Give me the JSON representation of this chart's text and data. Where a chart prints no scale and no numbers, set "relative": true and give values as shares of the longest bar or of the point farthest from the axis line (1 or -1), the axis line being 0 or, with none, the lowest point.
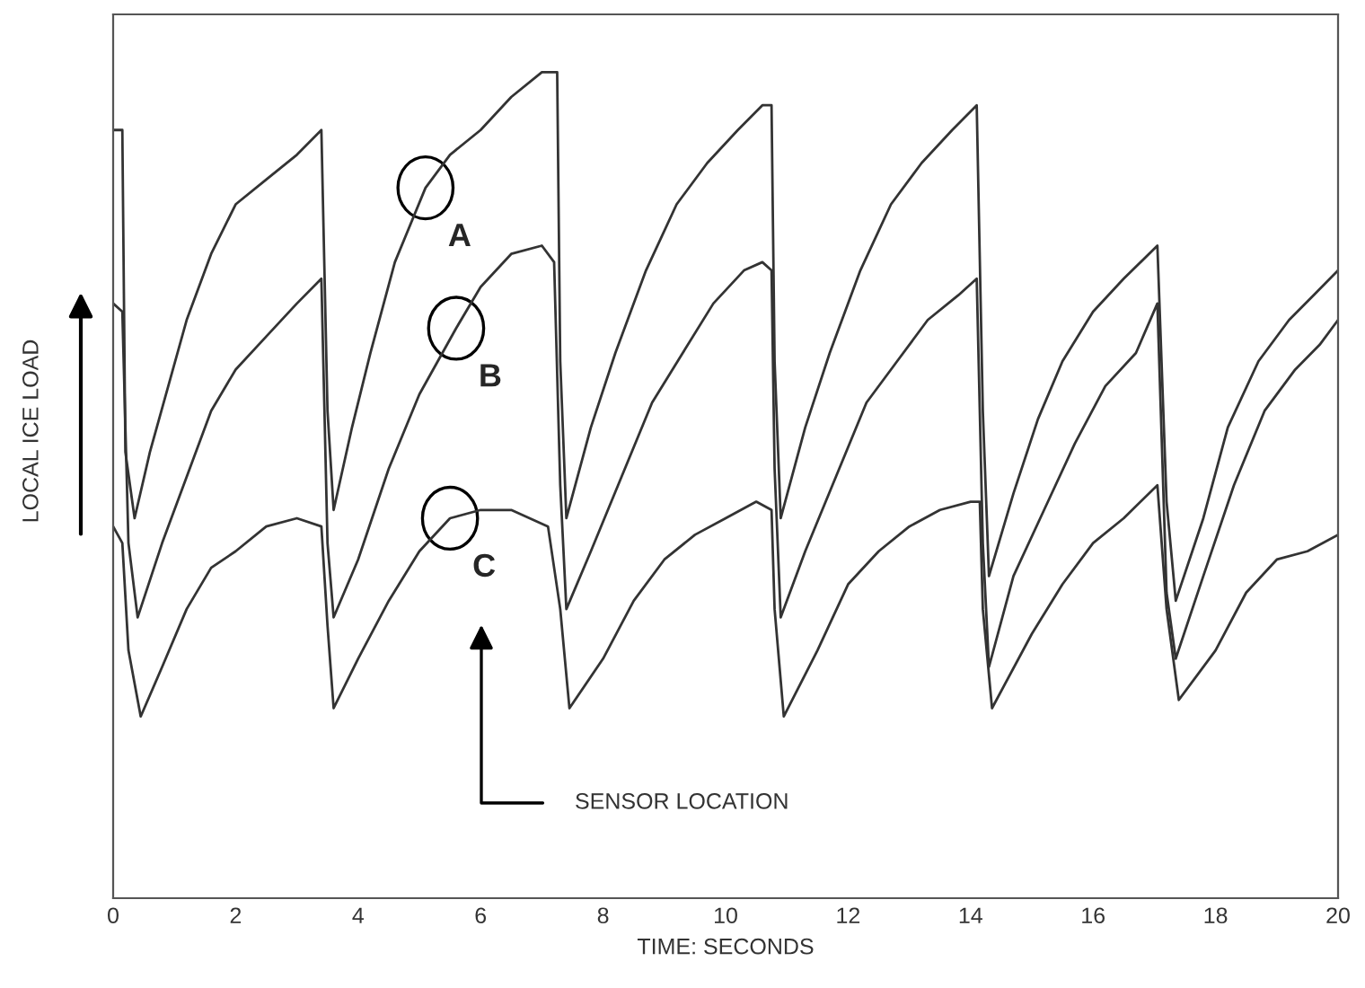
{
  "chart_data": {
    "type": "line",
    "relative": true,
    "xlabel": "TIME: SECONDS",
    "ylabel": "LOCAL ICE LOAD",
    "xlim": [
      0,
      20
    ],
    "xticks": [
      0,
      2,
      4,
      6,
      8,
      10,
      12,
      14,
      16,
      18,
      20
    ],
    "grid": false,
    "legend": false,
    "marker": "none",
    "line_style": "solid",
    "annotations": [
      {
        "text": "A",
        "x": 5.1,
        "y": 0.86
      },
      {
        "text": "B",
        "x": 5.6,
        "y": 0.69
      },
      {
        "text": "C",
        "x": 5.5,
        "y": 0.46
      },
      "SENSOR LOCATION"
    ],
    "series": [
      {
        "color": "#333333",
        "x": [
          0,
          0.15,
          0.2,
          0.35,
          0.6,
          0.9,
          1.2,
          1.6,
          2.0,
          2.5,
          3.0,
          3.4,
          3.5,
          3.6,
          3.9,
          4.2,
          4.6,
          5.1,
          5.5,
          6.0,
          6.5,
          7.0,
          7.25,
          7.3,
          7.4,
          7.8,
          8.2,
          8.7,
          9.2,
          9.7,
          10.2,
          10.6,
          10.75,
          10.8,
          10.9,
          11.3,
          11.7,
          12.2,
          12.7,
          13.2,
          13.7,
          14.1,
          14.2,
          14.3,
          14.7,
          15.1,
          15.5,
          16.0,
          16.5,
          17.05,
          17.2,
          17.35,
          17.8,
          18.2,
          18.7,
          19.2,
          19.6,
          20
        ],
        "values": [
          0.93,
          0.93,
          0.54,
          0.46,
          0.54,
          0.62,
          0.7,
          0.78,
          0.84,
          0.87,
          0.9,
          0.93,
          0.59,
          0.47,
          0.57,
          0.66,
          0.77,
          0.86,
          0.9,
          0.93,
          0.97,
          1.0,
          1.0,
          0.65,
          0.46,
          0.57,
          0.66,
          0.76,
          0.84,
          0.89,
          0.93,
          0.96,
          0.96,
          0.65,
          0.46,
          0.57,
          0.66,
          0.76,
          0.84,
          0.89,
          0.93,
          0.96,
          0.59,
          0.39,
          0.49,
          0.58,
          0.65,
          0.71,
          0.75,
          0.79,
          0.48,
          0.36,
          0.46,
          0.57,
          0.65,
          0.7,
          0.73,
          0.76
        ]
      },
      {
        "color": "#333333",
        "x": [
          0,
          0.15,
          0.25,
          0.4,
          0.8,
          1.2,
          1.6,
          2.0,
          2.5,
          3.0,
          3.4,
          3.5,
          3.6,
          4.0,
          4.5,
          5.0,
          5.6,
          6.0,
          6.5,
          7.0,
          7.2,
          7.3,
          7.4,
          7.8,
          8.3,
          8.8,
          9.3,
          9.8,
          10.3,
          10.6,
          10.75,
          10.8,
          10.9,
          11.3,
          11.8,
          12.3,
          12.8,
          13.3,
          13.8,
          14.1,
          14.2,
          14.3,
          14.7,
          15.2,
          15.7,
          16.2,
          16.7,
          17.05,
          17.2,
          17.35,
          17.8,
          18.3,
          18.8,
          19.3,
          19.7,
          20
        ],
        "values": [
          0.72,
          0.71,
          0.43,
          0.34,
          0.43,
          0.51,
          0.59,
          0.64,
          0.68,
          0.72,
          0.75,
          0.43,
          0.34,
          0.41,
          0.52,
          0.61,
          0.69,
          0.74,
          0.78,
          0.79,
          0.77,
          0.5,
          0.35,
          0.42,
          0.51,
          0.6,
          0.66,
          0.72,
          0.76,
          0.77,
          0.76,
          0.52,
          0.34,
          0.42,
          0.51,
          0.6,
          0.65,
          0.7,
          0.73,
          0.75,
          0.43,
          0.28,
          0.39,
          0.47,
          0.55,
          0.62,
          0.66,
          0.72,
          0.37,
          0.29,
          0.39,
          0.5,
          0.59,
          0.64,
          0.67,
          0.7
        ]
      },
      {
        "color": "#333333",
        "x": [
          0,
          0.15,
          0.25,
          0.45,
          0.8,
          1.2,
          1.6,
          2.0,
          2.5,
          3.0,
          3.4,
          3.5,
          3.6,
          4.0,
          4.5,
          5.0,
          5.5,
          6.0,
          6.5,
          7.1,
          7.3,
          7.45,
          8.0,
          8.5,
          9.0,
          9.5,
          10.0,
          10.5,
          10.75,
          10.8,
          10.95,
          11.5,
          12.0,
          12.5,
          13.0,
          13.5,
          14.0,
          14.15,
          14.2,
          14.35,
          15.0,
          15.5,
          16.0,
          16.5,
          17.05,
          17.2,
          17.4,
          18.0,
          18.5,
          19.0,
          19.5,
          20
        ],
        "values": [
          0.45,
          0.43,
          0.3,
          0.22,
          0.28,
          0.35,
          0.4,
          0.42,
          0.45,
          0.46,
          0.45,
          0.33,
          0.23,
          0.29,
          0.36,
          0.42,
          0.46,
          0.47,
          0.47,
          0.45,
          0.35,
          0.23,
          0.29,
          0.36,
          0.41,
          0.44,
          0.46,
          0.48,
          0.47,
          0.35,
          0.22,
          0.3,
          0.38,
          0.42,
          0.45,
          0.47,
          0.48,
          0.48,
          0.35,
          0.23,
          0.32,
          0.38,
          0.43,
          0.46,
          0.5,
          0.35,
          0.24,
          0.3,
          0.37,
          0.41,
          0.42,
          0.44
        ]
      }
    ]
  }
}
